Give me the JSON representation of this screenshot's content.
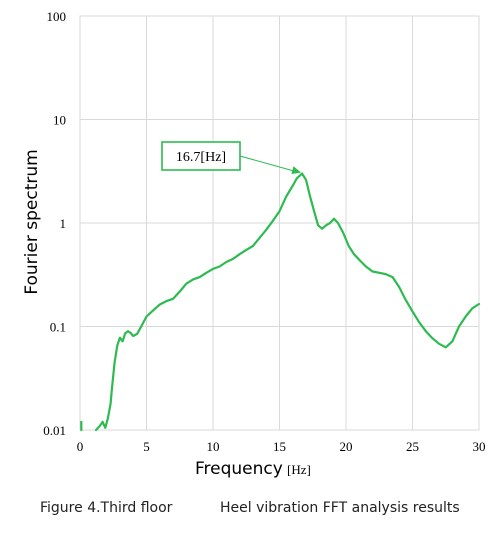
{
  "chart_data": {
    "type": "line",
    "xlabel": "Frequency",
    "xunit": "[Hz]",
    "ylabel": "Fourier spectrum",
    "xlim": [
      0,
      30
    ],
    "ylim": [
      0.01,
      100
    ],
    "yscale": "log",
    "grid": true,
    "line_color": "#2dbb50",
    "x_ticks": [
      {
        "value": 0,
        "label": "0"
      },
      {
        "value": 5,
        "label": "5"
      },
      {
        "value": 10,
        "label": "10"
      },
      {
        "value": 15,
        "label": "15"
      },
      {
        "value": 20,
        "label": "20"
      },
      {
        "value": 25,
        "label": "25"
      },
      {
        "value": 30,
        "label": "30"
      }
    ],
    "y_ticks": [
      {
        "value": 0.01,
        "label": "0.01"
      },
      {
        "value": 0.1,
        "label": "0.1"
      },
      {
        "value": 1,
        "label": "1"
      },
      {
        "value": 10,
        "label": "10"
      },
      {
        "value": 100,
        "label": "100"
      }
    ],
    "series": [
      {
        "segments": [
          [
            [
              0.1,
              0.012
            ],
            [
              0.1,
              0.01
            ]
          ],
          [
            [
              1.2,
              0.01
            ],
            [
              1.5,
              0.011
            ],
            [
              1.7,
              0.012
            ],
            [
              1.9,
              0.0105
            ],
            [
              2.1,
              0.013
            ],
            [
              2.3,
              0.018
            ],
            [
              2.4,
              0.025
            ],
            [
              2.6,
              0.045
            ],
            [
              2.8,
              0.065
            ],
            [
              3.0,
              0.078
            ],
            [
              3.2,
              0.072
            ],
            [
              3.4,
              0.086
            ],
            [
              3.6,
              0.09
            ],
            [
              3.8,
              0.087
            ],
            [
              4.0,
              0.081
            ],
            [
              4.3,
              0.085
            ],
            [
              4.6,
              0.1
            ],
            [
              5.0,
              0.125
            ],
            [
              5.5,
              0.143
            ],
            [
              6.0,
              0.163
            ],
            [
              6.5,
              0.176
            ],
            [
              7.0,
              0.185
            ],
            [
              7.5,
              0.218
            ],
            [
              8.0,
              0.26
            ],
            [
              8.5,
              0.285
            ],
            [
              9.0,
              0.3
            ],
            [
              9.5,
              0.33
            ],
            [
              10.0,
              0.36
            ],
            [
              10.5,
              0.38
            ],
            [
              11.0,
              0.42
            ],
            [
              11.5,
              0.45
            ],
            [
              12.0,
              0.5
            ],
            [
              12.5,
              0.55
            ],
            [
              13.0,
              0.6
            ],
            [
              13.5,
              0.72
            ],
            [
              14.0,
              0.86
            ],
            [
              14.5,
              1.05
            ],
            [
              15.0,
              1.3
            ],
            [
              15.5,
              1.8
            ],
            [
              16.0,
              2.3
            ],
            [
              16.3,
              2.7
            ],
            [
              16.7,
              3.0
            ],
            [
              17.0,
              2.6
            ],
            [
              17.3,
              1.8
            ],
            [
              17.6,
              1.3
            ],
            [
              17.9,
              0.95
            ],
            [
              18.2,
              0.88
            ],
            [
              18.5,
              0.95
            ],
            [
              18.8,
              1.0
            ],
            [
              19.1,
              1.1
            ],
            [
              19.4,
              1.0
            ],
            [
              19.8,
              0.8
            ],
            [
              20.2,
              0.6
            ],
            [
              20.6,
              0.5
            ],
            [
              21.0,
              0.44
            ],
            [
              21.5,
              0.38
            ],
            [
              22.0,
              0.34
            ],
            [
              22.5,
              0.33
            ],
            [
              23.0,
              0.32
            ],
            [
              23.5,
              0.3
            ],
            [
              24.0,
              0.24
            ],
            [
              24.5,
              0.18
            ],
            [
              25.0,
              0.14
            ],
            [
              25.5,
              0.11
            ],
            [
              26.0,
              0.09
            ],
            [
              26.5,
              0.077
            ],
            [
              27.0,
              0.068
            ],
            [
              27.5,
              0.063
            ],
            [
              28.0,
              0.072
            ],
            [
              28.5,
              0.1
            ],
            [
              29.0,
              0.125
            ],
            [
              29.5,
              0.15
            ],
            [
              30.0,
              0.165
            ]
          ]
        ]
      }
    ],
    "annotations": [
      {
        "text": "16.7[Hz]",
        "x": 16.7,
        "y": 3.0
      }
    ]
  },
  "caption": {
    "left": "Figure 4.Third floor",
    "right": "Heel vibration FFT analysis results"
  }
}
